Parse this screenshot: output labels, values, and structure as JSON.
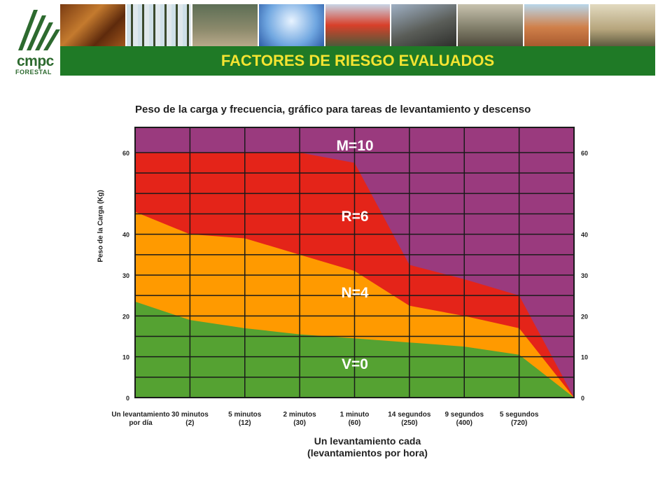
{
  "header": {
    "title": "FACTORES DE RIESGO EVALUADOS",
    "logo_text": "cmpc",
    "logo_subtext": "FORESTAL",
    "photo_icons": [
      "pine-cones-photo",
      "forest-photo",
      "deer-forest-photo",
      "trees-sky-photo",
      "workers-group-photo",
      "logs-machinery-photo",
      "sawmill-interior-photo",
      "lumber-stacks-photo",
      "wood-boards-photo"
    ]
  },
  "colors": {
    "header_green": "#1f7a26",
    "title_yellow": "#f4e431",
    "zone_green": "#55a232",
    "zone_orange": "#ff9a00",
    "zone_red": "#e42419",
    "zone_purple": "#9a3a7e"
  },
  "chart_data": {
    "type": "area",
    "title": "Peso de la carga y frecuencia, gráfico para tareas de levantamiento y descenso",
    "xlabel": "Un levantamiento cada\n(levantamientos por hora)",
    "ylabel": "Peso de la Carga (Kg)",
    "ylim": [
      0,
      65
    ],
    "y_ticks": [
      0,
      10,
      20,
      30,
      40,
      60
    ],
    "grid": true,
    "categories": [
      {
        "line1": "Un levantamiento",
        "line2": "por día"
      },
      {
        "line1": "30 minutos",
        "line2": "(2)"
      },
      {
        "line1": "5 minutos",
        "line2": "(12)"
      },
      {
        "line1": "2 minutos",
        "line2": "(30)"
      },
      {
        "line1": "1 minuto",
        "line2": "(60)"
      },
      {
        "line1": "14 segundos",
        "line2": "(250)"
      },
      {
        "line1": "9 segundos",
        "line2": "(400)"
      },
      {
        "line1": "5 segundos",
        "line2": "(720)"
      }
    ],
    "boundaries": [
      {
        "name": "V/N",
        "values": [
          23.5,
          19,
          17,
          15.5,
          14.5,
          13.5,
          12.5,
          10.5
        ]
      },
      {
        "name": "N/R",
        "values": [
          45.5,
          40,
          39,
          35,
          31,
          22.5,
          20,
          17
        ]
      },
      {
        "name": "R/M",
        "values": [
          60,
          60,
          60,
          60,
          57.5,
          32.5,
          29,
          25
        ]
      }
    ],
    "zones": [
      {
        "label": "V=0",
        "color": "#55a232"
      },
      {
        "label": "N=4",
        "color": "#ff9a00"
      },
      {
        "label": "R=6",
        "color": "#e42419"
      },
      {
        "label": "M=10",
        "color": "#9a3a7e"
      }
    ]
  }
}
